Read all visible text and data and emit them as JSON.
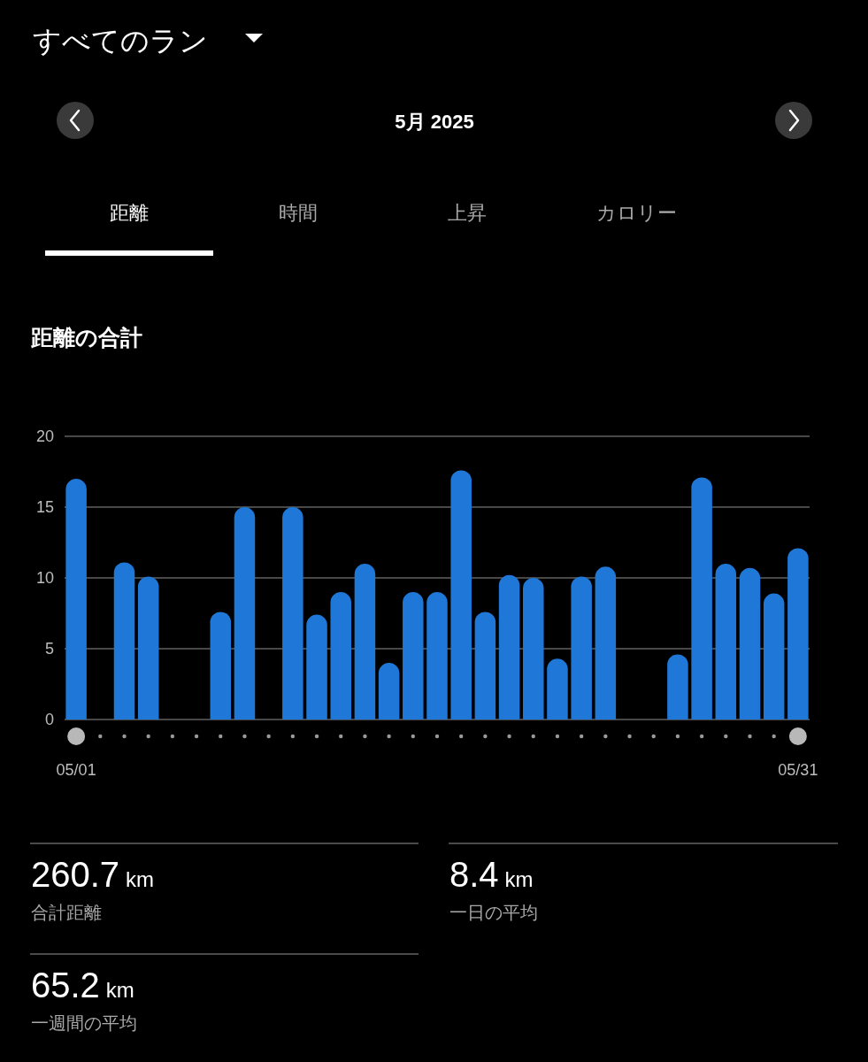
{
  "chart_data": {
    "type": "bar",
    "title": "距離の合計",
    "annotations": [
      "すべてのラン",
      "5月 2025",
      "距離",
      "時間",
      "上昇",
      "カロリー",
      "260.7 km",
      "合計距離",
      "8.4 km",
      "一日の平均",
      "65.2 km",
      "一週間の平均"
    ],
    "categories": [
      "05/01",
      null,
      null,
      null,
      null,
      null,
      null,
      null,
      null,
      null,
      null,
      null,
      null,
      null,
      null,
      null,
      null,
      null,
      null,
      null,
      null,
      null,
      null,
      null,
      null,
      null,
      null,
      null,
      null,
      null,
      "05/31"
    ],
    "values": [
      17.0,
      null,
      11.1,
      10.1,
      null,
      null,
      7.6,
      15.0,
      null,
      15.0,
      7.4,
      9.0,
      11.0,
      4.0,
      9.0,
      9.0,
      17.6,
      7.6,
      10.2,
      10.0,
      4.3,
      10.1,
      10.8,
      null,
      null,
      4.6,
      17.1,
      11.0,
      10.7,
      8.9,
      12.1
    ],
    "color": "#1f78d7",
    "ylim": [
      0,
      20
    ],
    "yticks": [
      0,
      5,
      10,
      15,
      20
    ],
    "grid": "y"
  }
}
